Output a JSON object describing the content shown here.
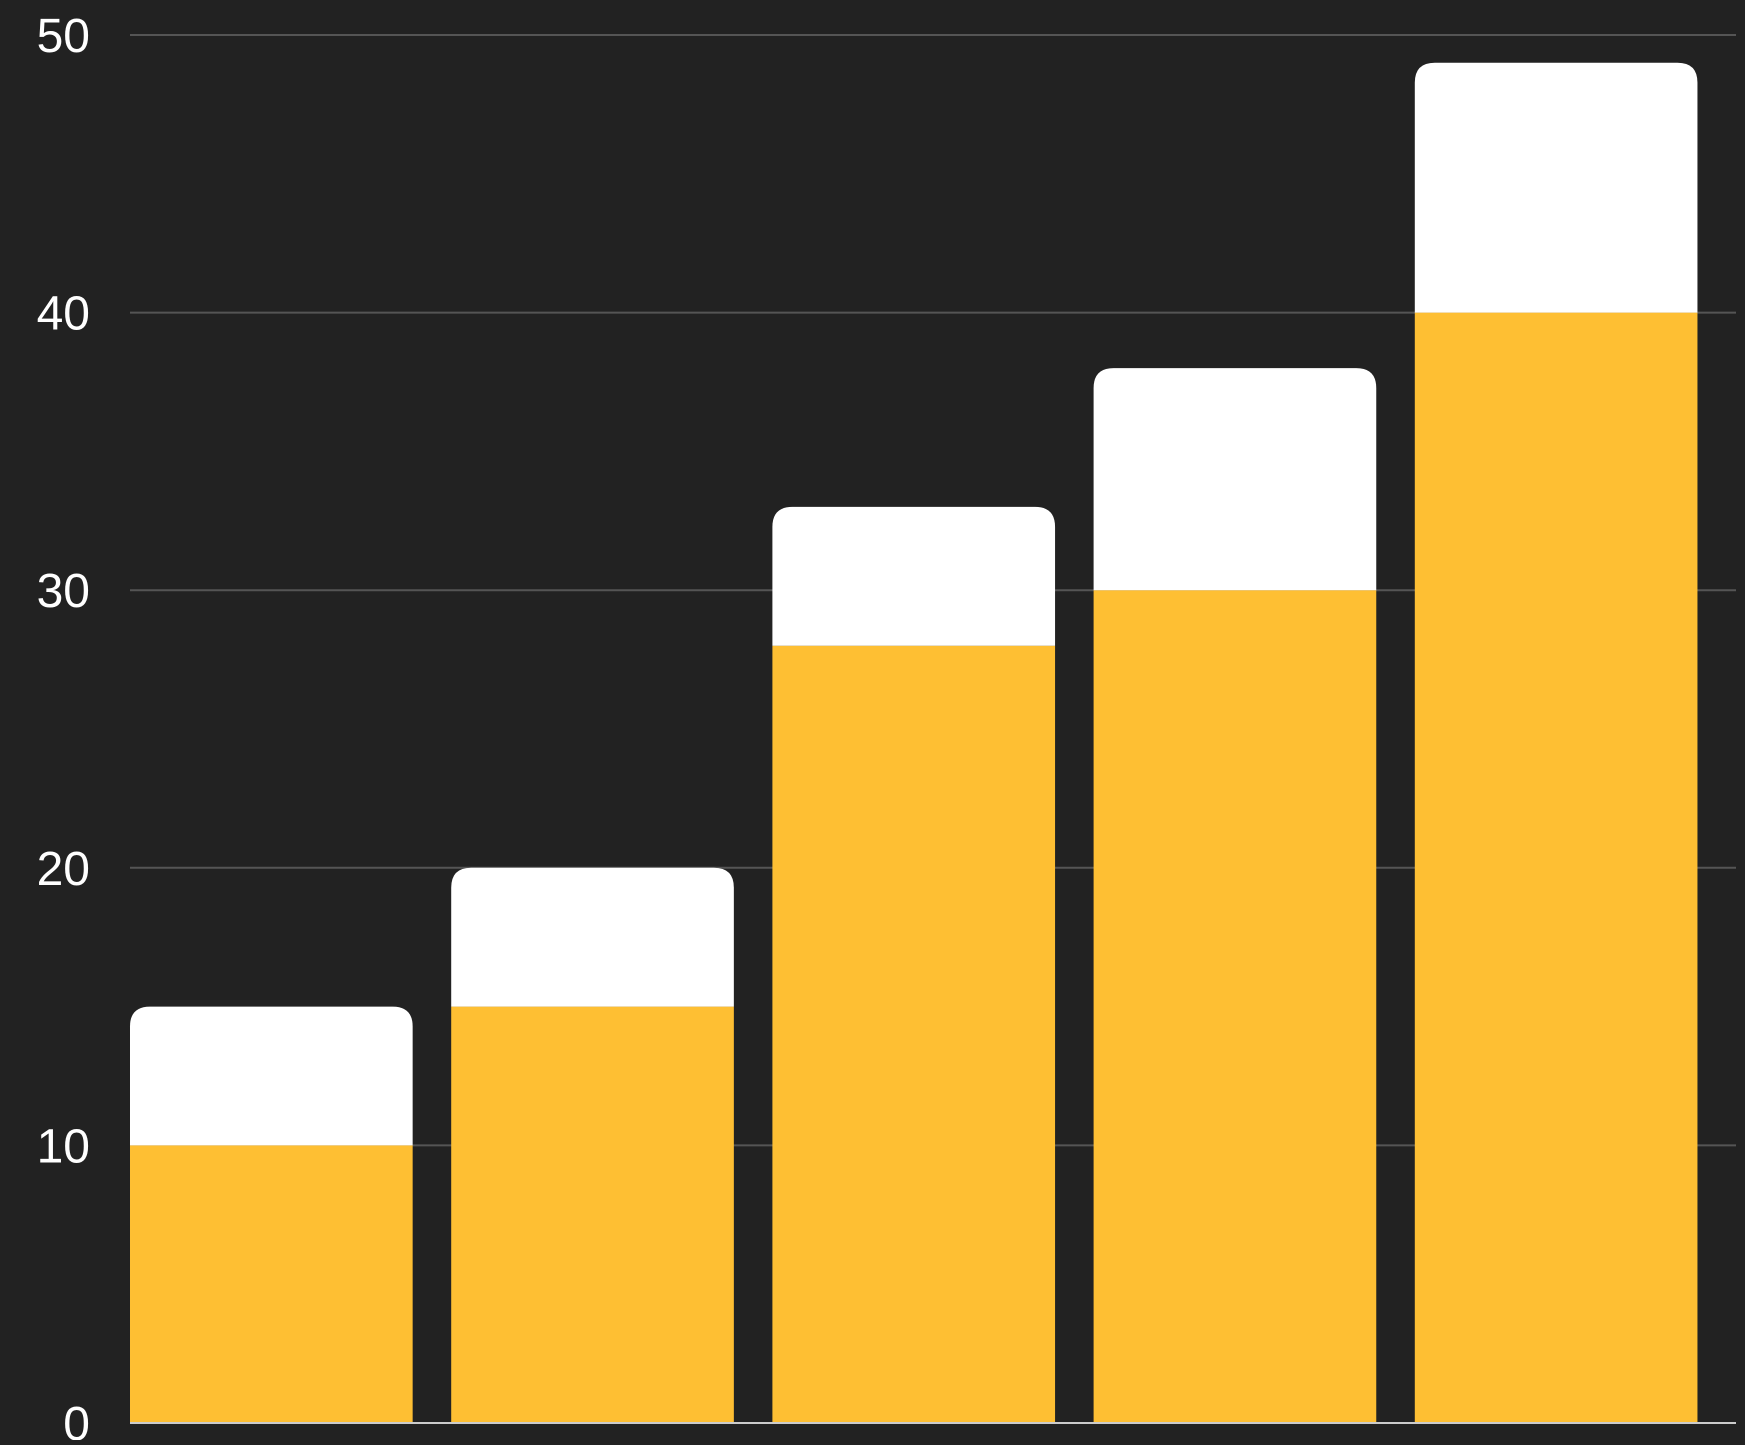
{
  "chart_data": {
    "type": "bar",
    "stacked": true,
    "categories": [
      "",
      "",
      "",
      "",
      ""
    ],
    "series": [
      {
        "values": [
          10,
          15,
          28,
          30,
          40
        ],
        "color": "#FEBF33"
      },
      {
        "values": [
          5,
          5,
          5,
          8,
          9
        ],
        "color": "#FFFFFF"
      }
    ],
    "title": "",
    "xlabel": "",
    "ylabel": "",
    "ylim": [
      0,
      50
    ],
    "yticks": [
      0,
      10,
      20,
      30,
      40,
      50
    ],
    "grid": true,
    "legend": "none",
    "colors": {
      "background": "#222222",
      "grid": "#555555",
      "tick_label": "#FFFFFF",
      "baseline": "#CCCCCC"
    }
  }
}
